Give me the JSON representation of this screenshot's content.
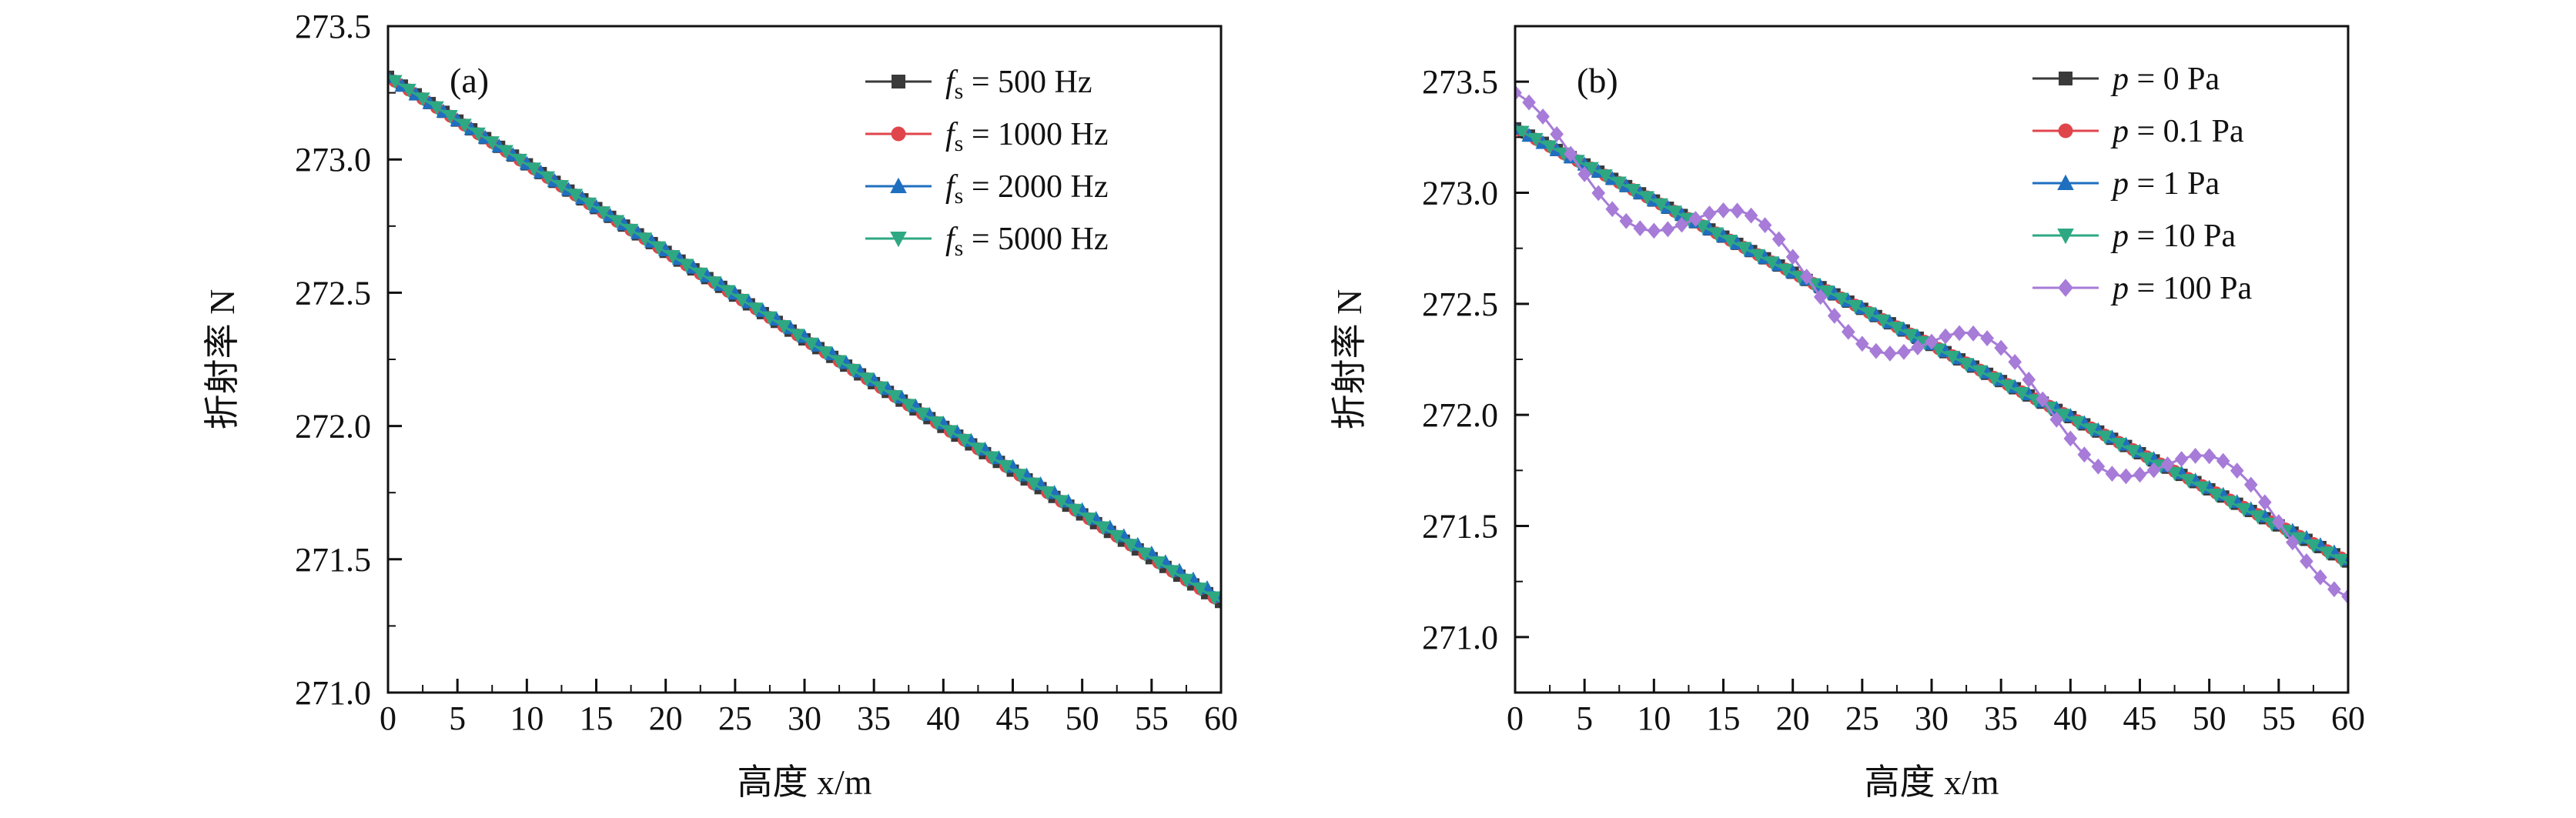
{
  "chart_data": [
    {
      "type": "line",
      "panel_label": "(a)",
      "xlabel": "高度 x/m",
      "ylabel": "折射率 N",
      "xlim": [
        0,
        60
      ],
      "ylim": [
        271.0,
        273.5
      ],
      "xticks": [
        0,
        5,
        10,
        15,
        20,
        25,
        30,
        35,
        40,
        45,
        50,
        55,
        60
      ],
      "yticks": [
        271.0,
        271.5,
        272.0,
        272.5,
        273.0,
        273.5
      ],
      "xtick_labels": [
        "0",
        "5",
        "10",
        "15",
        "20",
        "25",
        "30",
        "35",
        "40",
        "45",
        "50",
        "55",
        "60"
      ],
      "ytick_labels": [
        "271.0",
        "271.5",
        "272.0",
        "272.5",
        "273.0",
        "273.5"
      ],
      "legend_position": "top-right",
      "series": [
        {
          "name": "fs = 500 Hz",
          "var": "f",
          "sub": "s",
          "rest": " = 500 Hz",
          "marker": "square",
          "color": "#3a3a3a",
          "start": 273.31,
          "end": 271.34
        },
        {
          "name": "fs = 1000 Hz",
          "var": "f",
          "sub": "s",
          "rest": " = 1000 Hz",
          "marker": "circle",
          "color": "#e0454c",
          "start": 273.31,
          "end": 271.34
        },
        {
          "name": "fs = 2000 Hz",
          "var": "f",
          "sub": "s",
          "rest": " = 2000 Hz",
          "marker": "triangle-up",
          "color": "#1f6fc0",
          "start": 273.31,
          "end": 271.36
        },
        {
          "name": "fs = 5000 Hz",
          "var": "f",
          "sub": "s",
          "rest": " = 5000 Hz",
          "marker": "triangle-down",
          "color": "#2ea883",
          "start": 273.31,
          "end": 271.34
        }
      ]
    },
    {
      "type": "line",
      "panel_label": "(b)",
      "xlabel": "高度 x/m",
      "ylabel": "折射率 N",
      "xlim": [
        0,
        60
      ],
      "ylim": [
        270.75,
        273.75
      ],
      "xticks": [
        0,
        5,
        10,
        15,
        20,
        25,
        30,
        35,
        40,
        45,
        50,
        55,
        60
      ],
      "yticks": [
        271.0,
        271.5,
        272.0,
        272.5,
        273.0,
        273.5
      ],
      "xtick_labels": [
        "0",
        "5",
        "10",
        "15",
        "20",
        "25",
        "30",
        "35",
        "40",
        "45",
        "50",
        "55",
        "60"
      ],
      "ytick_labels": [
        "271.0",
        "271.5",
        "272.0",
        "272.5",
        "273.0",
        "273.5"
      ],
      "legend_position": "top-right",
      "series": [
        {
          "name": "p = 0 Pa",
          "var": "p",
          "sub": "",
          "rest": " = 0 Pa",
          "marker": "square",
          "color": "#3a3a3a",
          "start": 273.29,
          "end": 271.34
        },
        {
          "name": "p = 0.1 Pa",
          "var": "p",
          "sub": "",
          "rest": " = 0.1 Pa",
          "marker": "circle",
          "color": "#e0454c",
          "start": 273.29,
          "end": 271.34
        },
        {
          "name": "p = 1 Pa",
          "var": "p",
          "sub": "",
          "rest": " = 1 Pa",
          "marker": "triangle-up",
          "color": "#1f6fc0",
          "start": 273.29,
          "end": 271.35
        },
        {
          "name": "p = 10 Pa",
          "var": "p",
          "sub": "",
          "rest": " = 10 Pa",
          "marker": "triangle-down",
          "color": "#2ea883",
          "start": 273.29,
          "end": 271.33
        },
        {
          "name": "p = 100 Pa",
          "var": "p",
          "sub": "",
          "rest": " = 100 Pa",
          "marker": "diamond",
          "color": "#a77bd8",
          "start": 273.29,
          "end": 271.34,
          "oscillation": {
            "amplitude": 0.16,
            "period": 17
          }
        }
      ]
    }
  ]
}
